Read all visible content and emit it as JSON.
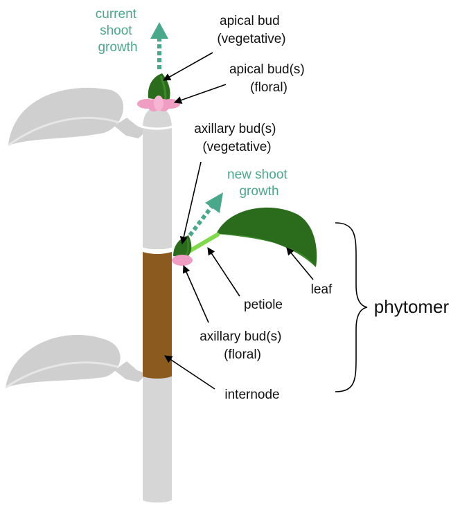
{
  "colors": {
    "stem": "#d6d6d6",
    "internode": "#8b5a1e",
    "leaf_dark": "#2a6b1c",
    "leaf_light": "#3d8a2a",
    "petiole": "#7fd94a",
    "floral_bud": "#f09dc4",
    "growth_arrow": "#4aa88a",
    "gray_leaf": "#cfcfcf"
  },
  "labels": {
    "current_shoot_growth": [
      "current",
      "shoot",
      "growth"
    ],
    "apical_bud_vegetative": [
      "apical bud",
      "(vegetative)"
    ],
    "apical_bud_floral": [
      "apical bud(s)",
      "(floral)"
    ],
    "axillary_bud_vegetative": [
      "axillary bud(s)",
      "(vegetative)"
    ],
    "new_shoot_growth": [
      "new shoot",
      "growth"
    ],
    "leaf": "leaf",
    "petiole": "petiole",
    "axillary_bud_floral": [
      "axillary bud(s)",
      "(floral)"
    ],
    "internode": "internode",
    "phytomer": "phytomer"
  }
}
